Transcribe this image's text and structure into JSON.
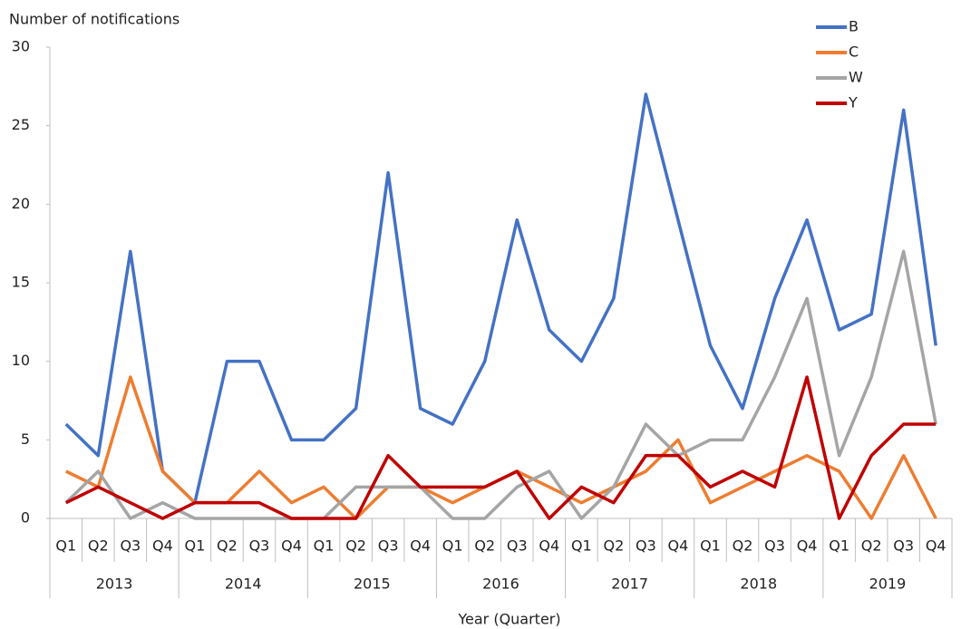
{
  "chart_data": {
    "type": "line",
    "y_label": "Number of notifications",
    "x_label": "Year (Quarter)",
    "categories": [
      "Q1",
      "Q2",
      "Q3",
      "Q4",
      "Q1",
      "Q2",
      "Q3",
      "Q4",
      "Q1",
      "Q2",
      "Q3",
      "Q4",
      "Q1",
      "Q2",
      "Q3",
      "Q4",
      "Q1",
      "Q2",
      "Q3",
      "Q4",
      "Q1",
      "Q2",
      "Q3",
      "Q4",
      "Q1",
      "Q2",
      "Q3",
      "Q4"
    ],
    "category_groups": [
      "2013",
      "2014",
      "2015",
      "2016",
      "2017",
      "2018",
      "2019"
    ],
    "series": [
      {
        "name": "B",
        "color": "#4472c4",
        "values": [
          6,
          4,
          17,
          3,
          1,
          10,
          10,
          5,
          5,
          7,
          22,
          7,
          6,
          10,
          19,
          12,
          10,
          14,
          27,
          19,
          11,
          7,
          14,
          19,
          12,
          13,
          26,
          11
        ]
      },
      {
        "name": "C",
        "color": "#ed7d31",
        "values": [
          3,
          2,
          9,
          3,
          1,
          1,
          3,
          1,
          2,
          0,
          2,
          2,
          1,
          2,
          3,
          2,
          1,
          2,
          3,
          5,
          1,
          2,
          3,
          4,
          3,
          0,
          4,
          0
        ]
      },
      {
        "name": "W",
        "color": "#a5a5a5",
        "values": [
          1,
          3,
          0,
          1,
          0,
          0,
          0,
          0,
          0,
          2,
          2,
          2,
          0,
          0,
          2,
          3,
          0,
          2,
          6,
          4,
          5,
          5,
          9,
          14,
          4,
          9,
          17,
          6
        ]
      },
      {
        "name": "Y",
        "color": "#c00000",
        "values": [
          1,
          2,
          1,
          0,
          1,
          1,
          1,
          0,
          0,
          0,
          4,
          2,
          2,
          2,
          3,
          0,
          2,
          1,
          4,
          4,
          2,
          3,
          2,
          9,
          0,
          4,
          6,
          6
        ]
      }
    ],
    "ylim": [
      0,
      30
    ],
    "yticks": [
      0,
      5,
      10,
      15,
      20,
      25,
      30
    ],
    "legend": "top-right"
  }
}
